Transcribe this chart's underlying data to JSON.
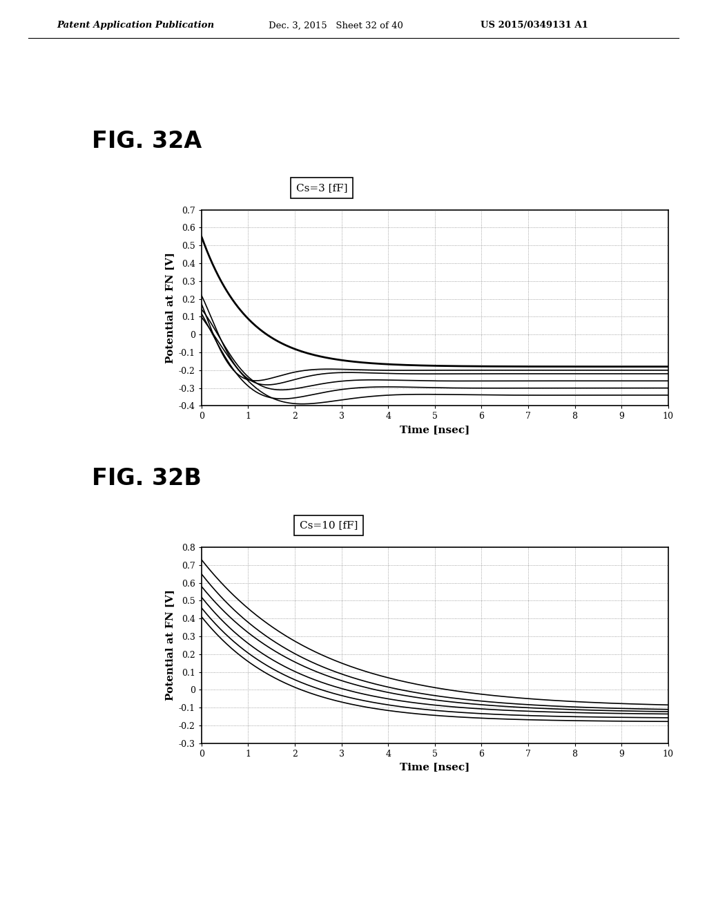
{
  "header_left": "Patent Application Publication",
  "header_mid": "Dec. 3, 2015   Sheet 32 of 40",
  "header_right": "US 2015/0349131 A1",
  "fig_a_label": "FIG. 32A",
  "fig_b_label": "FIG. 32B",
  "title_a": "Cs=3 [fF]",
  "title_b": "Cs=10 [fF]",
  "xlabel": "Time [nsec]",
  "ylabel": "Potential at FN [V]",
  "xlim": [
    0,
    10
  ],
  "ylim_a": [
    -0.4,
    0.7
  ],
  "ylim_b": [
    -0.3,
    0.8
  ],
  "yticks_a": [
    -0.4,
    -0.3,
    -0.2,
    -0.1,
    0.0,
    0.1,
    0.2,
    0.3,
    0.4,
    0.5,
    0.6,
    0.7
  ],
  "yticks_b": [
    -0.3,
    -0.2,
    -0.1,
    0.0,
    0.1,
    0.2,
    0.3,
    0.4,
    0.5,
    0.6,
    0.7,
    0.8
  ],
  "xticks": [
    0,
    1,
    2,
    3,
    4,
    5,
    6,
    7,
    8,
    9,
    10
  ],
  "bg_color": "#ffffff",
  "line_color": "#000000"
}
